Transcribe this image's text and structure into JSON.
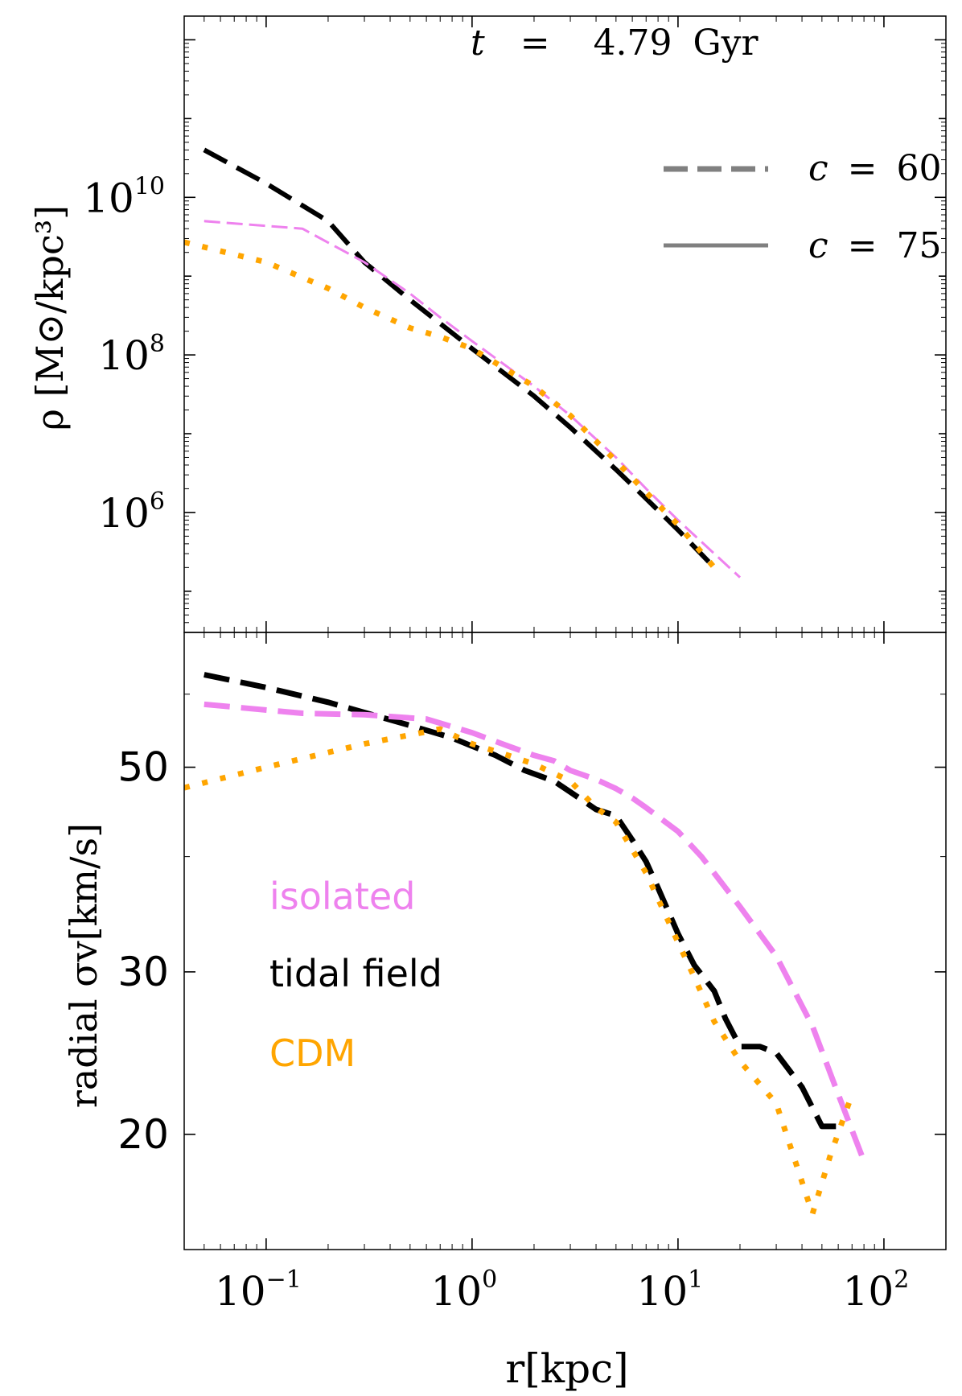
{
  "chart_data": [
    {
      "panel": "top",
      "type": "line",
      "x_scale": "log",
      "y_scale": "log",
      "xlim": [
        0.04,
        200
      ],
      "ylim": [
        30000,
        2000000000000
      ],
      "ylabel": "ρ [M⊙/kpc³]",
      "y_tick_labels": [
        {
          "value": 1000000,
          "base": "10",
          "exp": "6"
        },
        {
          "value": 100000000,
          "base": "10",
          "exp": "8"
        },
        {
          "value": 10000000000,
          "base": "10",
          "exp": "10"
        }
      ],
      "annotation": {
        "t_symbol": "t",
        "eq": "=",
        "value": "4.79",
        "unit": "Gyr"
      },
      "legend": {
        "placement": "top-right",
        "entries": [
          {
            "style": "dashed",
            "symbol": "c",
            "eq": "=",
            "value": "60"
          },
          {
            "style": "solid",
            "symbol": "c",
            "eq": "=",
            "value": "75"
          }
        ]
      },
      "series": [
        {
          "key": "tidal",
          "style": "dashed",
          "color": "#000000",
          "width": 6,
          "x": [
            0.05,
            0.1,
            0.2,
            0.3,
            0.5,
            0.7,
            1,
            2,
            3,
            5,
            7,
            10,
            15
          ],
          "y": [
            40000000000,
            15000000000,
            5000000000,
            1500000000,
            500000000,
            250000000,
            120000000,
            30000000,
            12000000,
            3500000,
            1500000,
            600000,
            200000
          ]
        },
        {
          "key": "isolated",
          "style": "dashed",
          "color": "#ee82ee",
          "width": 3,
          "x": [
            0.05,
            0.15,
            0.3,
            0.5,
            0.7,
            1,
            2,
            3,
            5,
            7,
            10,
            15,
            20
          ],
          "y": [
            5000000000,
            4000000000,
            1500000000,
            600000000,
            300000000,
            150000000,
            40000000,
            17000000,
            5000000,
            2000000,
            800000,
            300000,
            150000
          ]
        },
        {
          "key": "cdm",
          "style": "dotted",
          "color": "#ffa500",
          "width": 7,
          "x": [
            0.04,
            0.1,
            0.2,
            0.3,
            0.5,
            0.7,
            1,
            2,
            3,
            5,
            7,
            10,
            15
          ],
          "y": [
            2700000000,
            1500000000,
            700000000,
            400000000,
            220000000,
            170000000,
            120000000,
            40000000,
            17000000,
            4500000,
            1800000,
            700000,
            200000
          ]
        }
      ]
    },
    {
      "panel": "bottom",
      "type": "line",
      "x_scale": "log",
      "y_scale": "log",
      "xlim": [
        0.04,
        200
      ],
      "ylim": [
        15,
        70
      ],
      "ylabel": "radial σv[km/s]",
      "xlabel": "r[kpc]",
      "y_ticks": [
        20,
        30,
        50
      ],
      "y_tick_labels": [
        "20",
        "30",
        "50"
      ],
      "x_ticks": [
        0.1,
        1,
        10,
        100
      ],
      "x_tick_labels": [
        {
          "base": "10",
          "exp": "−1"
        },
        {
          "base": "10",
          "exp": "0"
        },
        {
          "base": "10",
          "exp": "1"
        },
        {
          "base": "10",
          "exp": "2"
        }
      ],
      "text_legend": [
        {
          "label": "isolated",
          "color": "#ee82ee"
        },
        {
          "label": "tidal field",
          "color": "#000000"
        },
        {
          "label": "CDM",
          "color": "#ffa500"
        }
      ],
      "series": [
        {
          "key": "tidal",
          "style": "dashed",
          "color": "#000000",
          "width": 7,
          "x": [
            0.05,
            0.1,
            0.2,
            0.5,
            0.8,
            1,
            1.3,
            1.8,
            2.5,
            3,
            4,
            5,
            6,
            7,
            8,
            10,
            12,
            15,
            17,
            20,
            25,
            30,
            40,
            50,
            60
          ],
          "y": [
            63,
            61,
            58.8,
            55.5,
            53.8,
            52.7,
            51.5,
            49.6,
            48.3,
            47,
            45,
            44.3,
            41.7,
            39.5,
            37,
            33,
            30.5,
            28.6,
            26.7,
            24.9,
            24.9,
            24.5,
            22.5,
            20.4,
            20.4
          ]
        },
        {
          "key": "isolated",
          "style": "dashed",
          "color": "#ee82ee",
          "width": 7,
          "x": [
            0.05,
            0.15,
            0.3,
            0.6,
            1,
            1.5,
            2,
            2.5,
            3,
            4,
            5,
            6,
            7,
            10,
            13,
            20,
            30,
            45,
            60,
            80
          ],
          "y": [
            58.5,
            57.2,
            57,
            56.4,
            54.5,
            52.7,
            51.5,
            50.8,
            49.6,
            48.5,
            47.4,
            46.3,
            45.2,
            42.6,
            40,
            35.3,
            31.2,
            26.2,
            22.1,
            18.7
          ]
        },
        {
          "key": "cdm",
          "style": "dotted",
          "color": "#ffa500",
          "width": 7,
          "x": [
            0.04,
            0.1,
            0.3,
            0.7,
            1,
            1.5,
            2,
            3,
            4,
            5,
            7,
            10,
            12,
            15,
            20,
            30,
            45,
            55,
            70
          ],
          "y": [
            47.5,
            50,
            53,
            55,
            53,
            51.5,
            50.4,
            48.3,
            45.2,
            43.6,
            38.4,
            32.3,
            29.6,
            26.5,
            24,
            21.6,
            16.4,
            19,
            22.1
          ]
        }
      ]
    }
  ]
}
